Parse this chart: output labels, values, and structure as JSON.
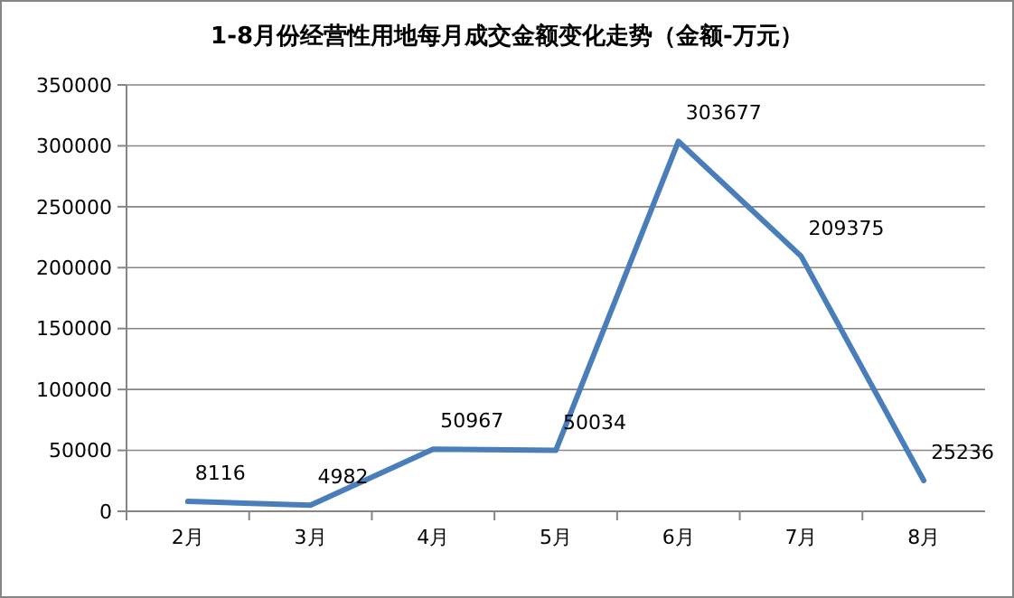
{
  "chart_data": {
    "type": "line",
    "title": "1-8月份经营性用地每月成交金额变化走势（金额-万元）",
    "categories": [
      "2月",
      "3月",
      "4月",
      "5月",
      "6月",
      "7月",
      "8月"
    ],
    "series": [
      {
        "color": "#4a7ebb",
        "values": [
          8116,
          4982,
          50967,
          50034,
          303677,
          209375,
          25236
        ]
      }
    ],
    "ylim": [
      0,
      350000
    ],
    "yticks": [
      0,
      50000,
      100000,
      150000,
      200000,
      250000,
      300000,
      350000
    ],
    "grid": "y",
    "marker": "none",
    "line_style": "solid",
    "data_labels": true
  }
}
